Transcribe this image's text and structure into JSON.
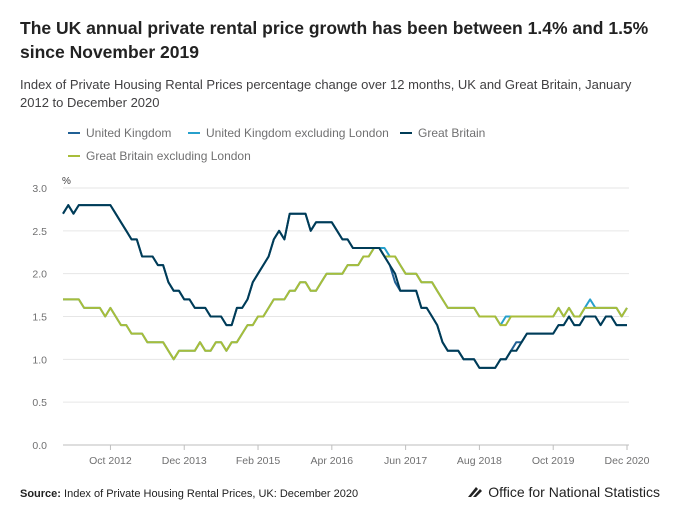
{
  "title": "The UK annual private rental price growth has been between 1.4% and 1.5% since November 2019",
  "subtitle": "Index of Private Housing Rental Prices percentage change over 12 months, UK and Great Britain, January 2012 to December 2020",
  "source_label": "Source:",
  "source_text": " Index of Private Housing Rental Prices, UK: December 2020",
  "publisher": "Office for National Statistics",
  "chart_data": {
    "type": "line",
    "ylabel": "%",
    "ylim": [
      0,
      3.0
    ],
    "y_ticks": [
      "0.0",
      "0.5",
      "1.0",
      "1.5",
      "2.0",
      "2.5",
      "3.0"
    ],
    "x_ticks": [
      "Oct 2012",
      "Dec 2013",
      "Feb 2015",
      "Apr 2016",
      "Jun 2017",
      "Aug 2018",
      "Oct 2019",
      "Dec 2020"
    ],
    "x_range": [
      "Jan 2012",
      "Dec 2020"
    ],
    "grid": true,
    "legend_position": "top",
    "series": [
      {
        "name": "United Kingdom",
        "color": "#206095",
        "values": [
          2.7,
          2.8,
          2.7,
          2.8,
          2.8,
          2.8,
          2.8,
          2.8,
          2.8,
          2.8,
          2.7,
          2.6,
          2.5,
          2.4,
          2.4,
          2.2,
          2.2,
          2.2,
          2.1,
          2.1,
          1.9,
          1.8,
          1.8,
          1.7,
          1.7,
          1.6,
          1.6,
          1.6,
          1.5,
          1.5,
          1.5,
          1.4,
          1.4,
          1.6,
          1.6,
          1.7,
          1.9,
          2.0,
          2.1,
          2.2,
          2.4,
          2.5,
          2.4,
          2.7,
          2.7,
          2.7,
          2.7,
          2.5,
          2.6,
          2.6,
          2.6,
          2.6,
          2.5,
          2.4,
          2.4,
          2.3,
          2.3,
          2.3,
          2.3,
          2.3,
          2.3,
          2.2,
          2.1,
          1.9,
          1.8,
          1.8,
          1.8,
          1.8,
          1.6,
          1.6,
          1.5,
          1.4,
          1.2,
          1.1,
          1.1,
          1.1,
          1.0,
          1.0,
          1.0,
          0.9,
          0.9,
          0.9,
          0.9,
          1.0,
          1.0,
          1.1,
          1.2,
          1.2,
          1.3,
          1.3,
          1.3,
          1.3,
          1.3,
          1.3,
          1.4,
          1.4,
          1.5,
          1.4,
          1.4,
          1.5,
          1.5,
          1.5,
          1.4,
          1.5,
          1.5,
          1.4,
          1.4,
          1.4
        ]
      },
      {
        "name": "United Kingdom excluding London",
        "color": "#27a0cc",
        "values": [
          1.7,
          1.7,
          1.7,
          1.7,
          1.6,
          1.6,
          1.6,
          1.6,
          1.5,
          1.6,
          1.5,
          1.4,
          1.4,
          1.3,
          1.3,
          1.3,
          1.2,
          1.2,
          1.2,
          1.2,
          1.1,
          1.0,
          1.1,
          1.1,
          1.1,
          1.1,
          1.2,
          1.1,
          1.1,
          1.2,
          1.2,
          1.1,
          1.2,
          1.2,
          1.3,
          1.4,
          1.4,
          1.5,
          1.5,
          1.6,
          1.7,
          1.7,
          1.7,
          1.8,
          1.8,
          1.9,
          1.9,
          1.8,
          1.8,
          1.9,
          2.0,
          2.0,
          2.0,
          2.0,
          2.1,
          2.1,
          2.1,
          2.2,
          2.2,
          2.3,
          2.3,
          2.3,
          2.2,
          2.2,
          2.1,
          2.0,
          2.0,
          2.0,
          1.9,
          1.9,
          1.9,
          1.8,
          1.7,
          1.6,
          1.6,
          1.6,
          1.6,
          1.6,
          1.6,
          1.5,
          1.5,
          1.5,
          1.5,
          1.4,
          1.5,
          1.5,
          1.5,
          1.5,
          1.5,
          1.5,
          1.5,
          1.5,
          1.5,
          1.5,
          1.6,
          1.5,
          1.6,
          1.5,
          1.5,
          1.6,
          1.7,
          1.6,
          1.6,
          1.6,
          1.6,
          1.6,
          1.5,
          1.6
        ]
      },
      {
        "name": "Great Britain",
        "color": "#003c57",
        "values": [
          2.7,
          2.8,
          2.7,
          2.8,
          2.8,
          2.8,
          2.8,
          2.8,
          2.8,
          2.8,
          2.7,
          2.6,
          2.5,
          2.4,
          2.4,
          2.2,
          2.2,
          2.2,
          2.1,
          2.1,
          1.9,
          1.8,
          1.8,
          1.7,
          1.7,
          1.6,
          1.6,
          1.6,
          1.5,
          1.5,
          1.5,
          1.4,
          1.4,
          1.6,
          1.6,
          1.7,
          1.9,
          2.0,
          2.1,
          2.2,
          2.4,
          2.5,
          2.4,
          2.7,
          2.7,
          2.7,
          2.7,
          2.5,
          2.6,
          2.6,
          2.6,
          2.6,
          2.5,
          2.4,
          2.4,
          2.3,
          2.3,
          2.3,
          2.3,
          2.3,
          2.3,
          2.2,
          2.1,
          2.0,
          1.8,
          1.8,
          1.8,
          1.8,
          1.6,
          1.6,
          1.5,
          1.4,
          1.2,
          1.1,
          1.1,
          1.1,
          1.0,
          1.0,
          1.0,
          0.9,
          0.9,
          0.9,
          0.9,
          1.0,
          1.0,
          1.1,
          1.1,
          1.2,
          1.3,
          1.3,
          1.3,
          1.3,
          1.3,
          1.3,
          1.4,
          1.4,
          1.5,
          1.4,
          1.4,
          1.5,
          1.5,
          1.5,
          1.4,
          1.5,
          1.5,
          1.4,
          1.4,
          1.4
        ]
      },
      {
        "name": "Great Britain excluding London",
        "color": "#a8bd3a",
        "values": [
          1.7,
          1.7,
          1.7,
          1.7,
          1.6,
          1.6,
          1.6,
          1.6,
          1.5,
          1.6,
          1.5,
          1.4,
          1.4,
          1.3,
          1.3,
          1.3,
          1.2,
          1.2,
          1.2,
          1.2,
          1.1,
          1.0,
          1.1,
          1.1,
          1.1,
          1.1,
          1.2,
          1.1,
          1.1,
          1.2,
          1.2,
          1.1,
          1.2,
          1.2,
          1.3,
          1.4,
          1.4,
          1.5,
          1.5,
          1.6,
          1.7,
          1.7,
          1.7,
          1.8,
          1.8,
          1.9,
          1.9,
          1.8,
          1.8,
          1.9,
          2.0,
          2.0,
          2.0,
          2.0,
          2.1,
          2.1,
          2.1,
          2.2,
          2.2,
          2.3,
          2.3,
          2.2,
          2.2,
          2.2,
          2.1,
          2.0,
          2.0,
          2.0,
          1.9,
          1.9,
          1.9,
          1.8,
          1.7,
          1.6,
          1.6,
          1.6,
          1.6,
          1.6,
          1.6,
          1.5,
          1.5,
          1.5,
          1.5,
          1.4,
          1.4,
          1.5,
          1.5,
          1.5,
          1.5,
          1.5,
          1.5,
          1.5,
          1.5,
          1.5,
          1.6,
          1.5,
          1.6,
          1.5,
          1.5,
          1.6,
          1.6,
          1.6,
          1.6,
          1.6,
          1.6,
          1.6,
          1.5,
          1.6
        ]
      }
    ]
  }
}
